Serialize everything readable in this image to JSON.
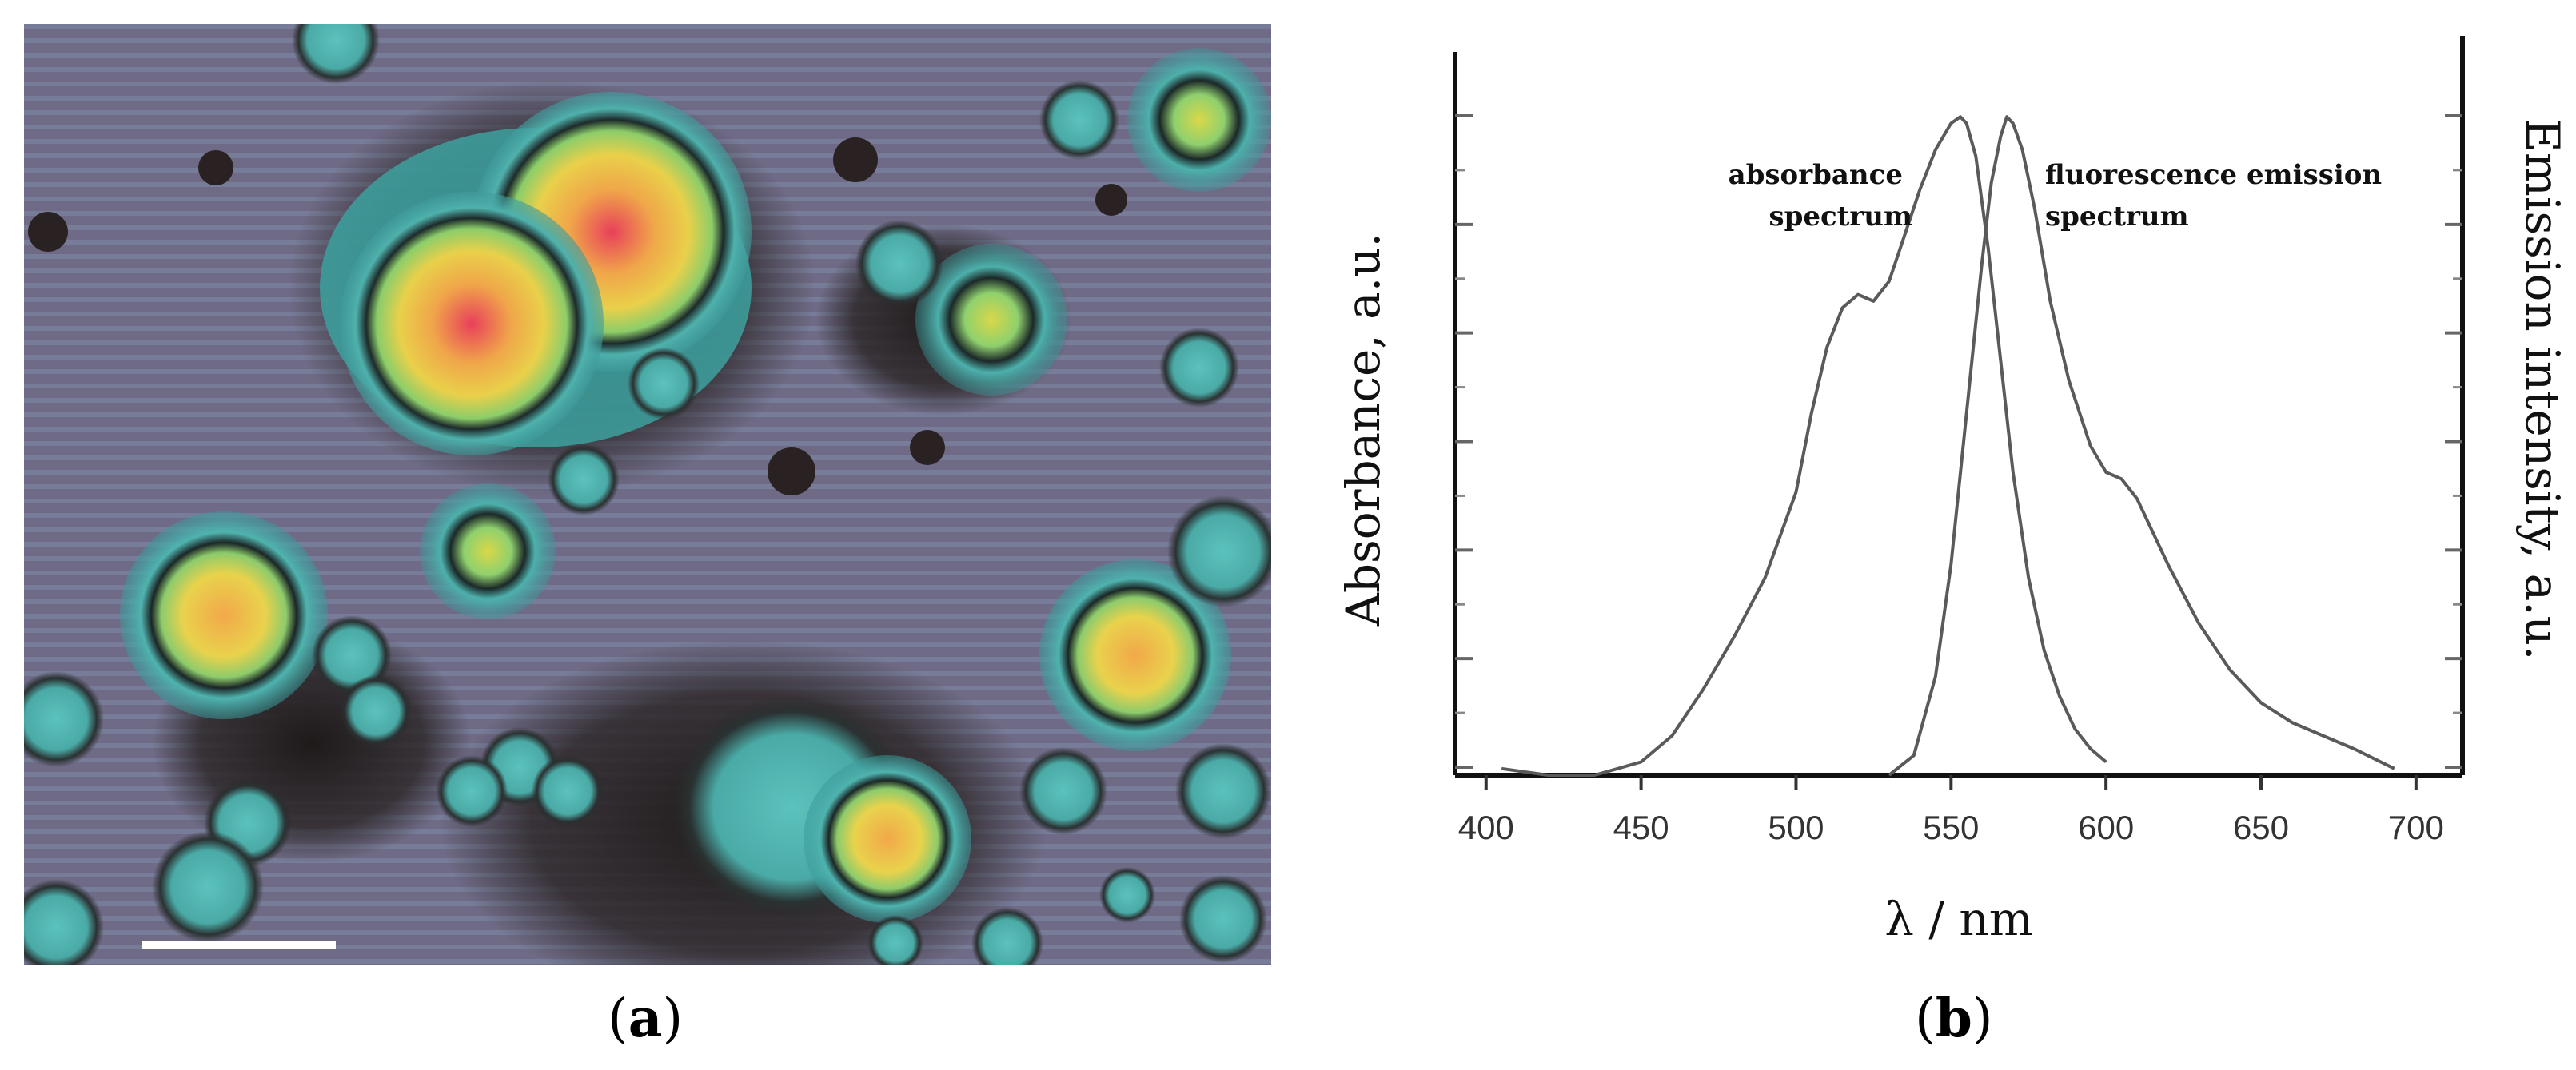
{
  "panels": {
    "a": {
      "label_open": "(",
      "label_letter": "a",
      "label_close": ")"
    },
    "b": {
      "label_open": "(",
      "label_letter": "b",
      "label_close": ")"
    }
  },
  "micrograph": {
    "background_color": "#6f6b86",
    "scale_bar_color": "#ffffff"
  },
  "chart_data": {
    "type": "line",
    "xlabel": "λ / nm",
    "ylabel_left": "Absorbance, a.u.",
    "ylabel_right": "Emission intensity, a.u.",
    "xlim": [
      390,
      715
    ],
    "ylim": [
      0,
      1.05
    ],
    "x_ticks": [
      400,
      450,
      500,
      550,
      600,
      650,
      700
    ],
    "x_tick_labels": [
      "400",
      "450",
      "500",
      "550",
      "600",
      "650",
      "700"
    ],
    "y_ticks_count": 7,
    "grid": false,
    "line_color": "#5a5a5a",
    "series": [
      {
        "name": "absorbance spectrum",
        "label_lines": [
          "absorbance",
          "spectrum"
        ],
        "x": [
          405,
          420,
          435,
          450,
          460,
          470,
          480,
          490,
          500,
          505,
          510,
          515,
          520,
          525,
          530,
          535,
          540,
          545,
          550,
          553,
          555,
          558,
          562,
          566,
          570,
          575,
          580,
          585,
          590,
          595,
          600
        ],
        "y": [
          0.01,
          0.0,
          0.0,
          0.02,
          0.06,
          0.13,
          0.21,
          0.3,
          0.43,
          0.55,
          0.65,
          0.71,
          0.73,
          0.72,
          0.75,
          0.82,
          0.89,
          0.95,
          0.99,
          1.0,
          0.99,
          0.94,
          0.8,
          0.63,
          0.46,
          0.3,
          0.19,
          0.12,
          0.07,
          0.04,
          0.02
        ]
      },
      {
        "name": "fluorescence emission spectrum",
        "label_lines": [
          "fluorescence emission",
          "spectrum"
        ],
        "x": [
          530,
          538,
          545,
          550,
          555,
          560,
          563,
          566,
          568,
          570,
          573,
          577,
          582,
          588,
          595,
          600,
          605,
          610,
          615,
          620,
          630,
          640,
          650,
          660,
          670,
          680,
          693
        ],
        "y": [
          0.0,
          0.03,
          0.15,
          0.32,
          0.55,
          0.78,
          0.9,
          0.97,
          1.0,
          0.99,
          0.95,
          0.86,
          0.72,
          0.6,
          0.5,
          0.46,
          0.45,
          0.42,
          0.37,
          0.32,
          0.23,
          0.16,
          0.11,
          0.08,
          0.06,
          0.04,
          0.01
        ]
      }
    ]
  }
}
